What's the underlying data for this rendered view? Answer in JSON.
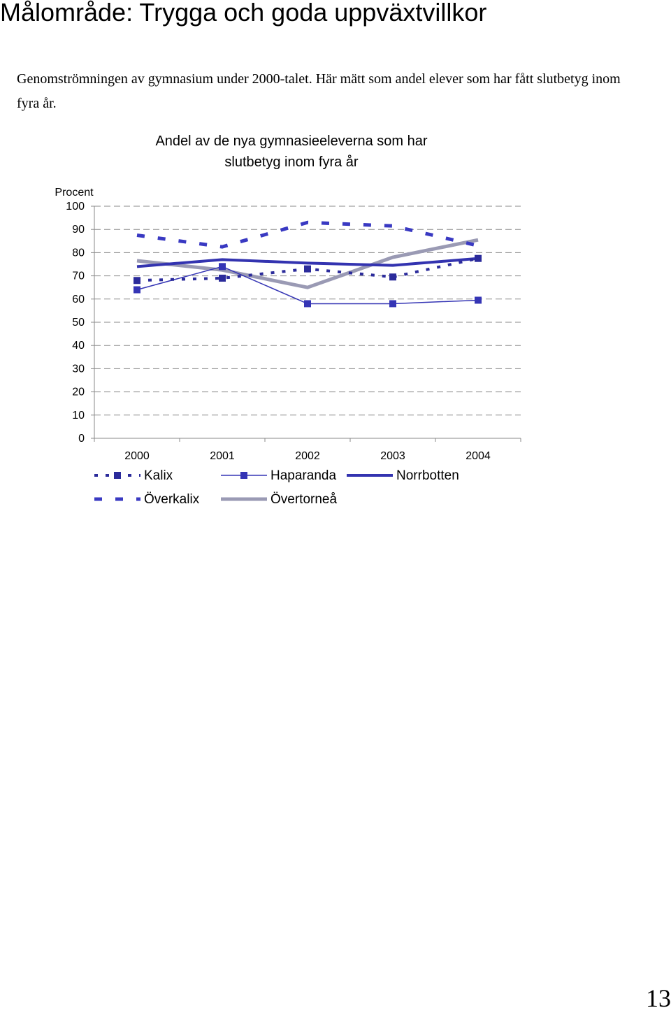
{
  "page": {
    "heading": "Målområde: Trygga och goda uppväxtvillkor",
    "intro": "Genomströmningen av gymnasium under 2000-talet. Här mätt som andel elever som har fått slutbetyg inom fyra år.",
    "page_number": "13"
  },
  "chart_data": {
    "type": "line",
    "title_lines": [
      "Andel av de nya gymnasieeleverna som har",
      "slutbetyg inom fyra år"
    ],
    "ylabel": "Procent",
    "xlabel": "",
    "categories": [
      "2000",
      "2001",
      "2002",
      "2003",
      "2004"
    ],
    "ylim": [
      0,
      100
    ],
    "yticks": [
      0,
      10,
      20,
      30,
      40,
      50,
      60,
      70,
      80,
      90,
      100
    ],
    "grid": true,
    "legend_position": "bottom",
    "series": [
      {
        "name": "Kalix",
        "values": [
          68,
          69,
          73,
          69.5,
          77.5
        ],
        "color": "#2b2b9b",
        "style": "dotted",
        "marker": "square"
      },
      {
        "name": "Haparanda",
        "values": [
          64,
          74,
          58,
          58,
          59.5
        ],
        "color": "#3535b5",
        "style": "thin",
        "marker": "square"
      },
      {
        "name": "Norrbotten",
        "values": [
          74,
          77,
          75.5,
          74.5,
          77.5
        ],
        "color": "#3333b0",
        "style": "solid"
      },
      {
        "name": "Överkalix",
        "values": [
          87.5,
          82.5,
          93,
          91.5,
          83
        ],
        "color": "#3939c2",
        "style": "dashed"
      },
      {
        "name": "Övertorneå",
        "values": [
          76.5,
          72.5,
          65,
          78,
          85.5
        ],
        "color": "#9a9ab4",
        "style": "thick"
      }
    ]
  }
}
